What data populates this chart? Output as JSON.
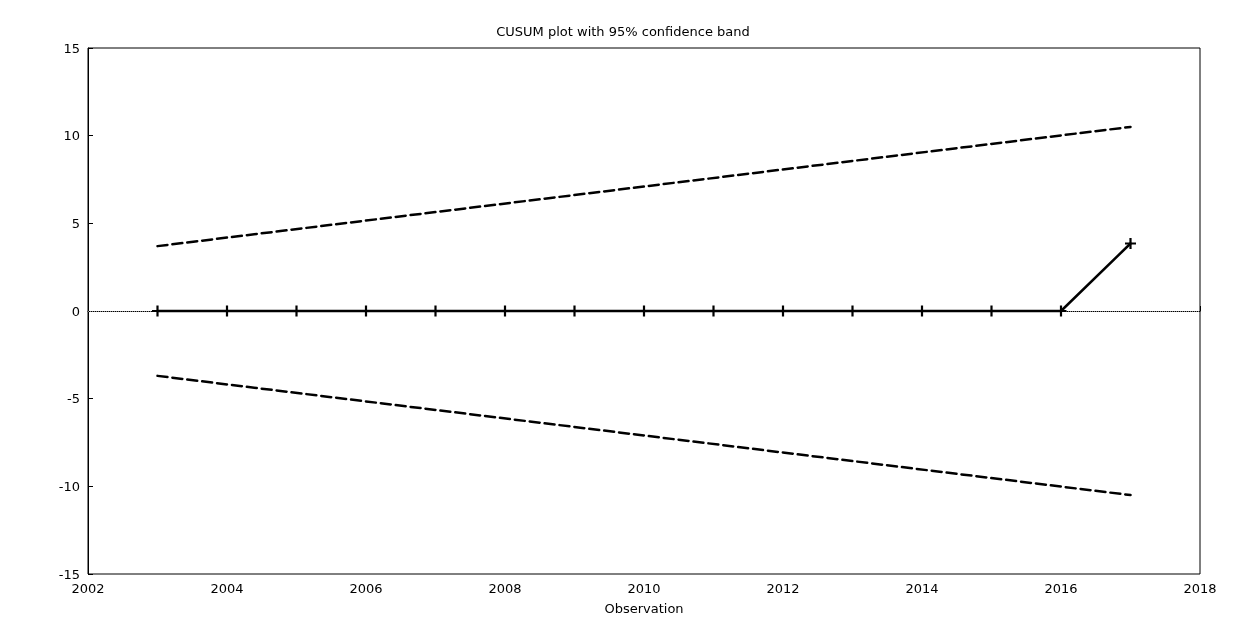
{
  "chart_data": {
    "type": "line",
    "title": "CUSUM plot with 95% confidence band",
    "xlabel": "Observation",
    "xlim": [
      2002,
      2018
    ],
    "xticks": [
      2002,
      2004,
      2006,
      2008,
      2010,
      2012,
      2014,
      2016,
      2018
    ],
    "ylim": [
      -15,
      15
    ],
    "yticks": [
      -15,
      -10,
      -5,
      0,
      5,
      10,
      15
    ],
    "grid": false,
    "ref_lines": [
      {
        "axis": "y",
        "value": 0,
        "color": "#888888",
        "line_style": "dotted"
      }
    ],
    "series": [
      {
        "color": "#000000",
        "marker": "cross",
        "line_style": "solid",
        "x": [
          2003,
          2004,
          2005,
          2006,
          2007,
          2008,
          2009,
          2010,
          2011,
          2012,
          2013,
          2014,
          2015,
          2016,
          2017
        ],
        "values": [
          0,
          0,
          0,
          0,
          0,
          0,
          0,
          0,
          0,
          0,
          0,
          0,
          0,
          0,
          3.85
        ]
      },
      {
        "color": "#000000",
        "marker": "none",
        "line_style": "dashed",
        "x": [
          2003,
          2017
        ],
        "values": [
          3.7,
          10.5
        ]
      },
      {
        "color": "#000000",
        "marker": "none",
        "line_style": "dashed",
        "x": [
          2003,
          2017
        ],
        "values": [
          -3.7,
          -10.5
        ]
      }
    ]
  }
}
